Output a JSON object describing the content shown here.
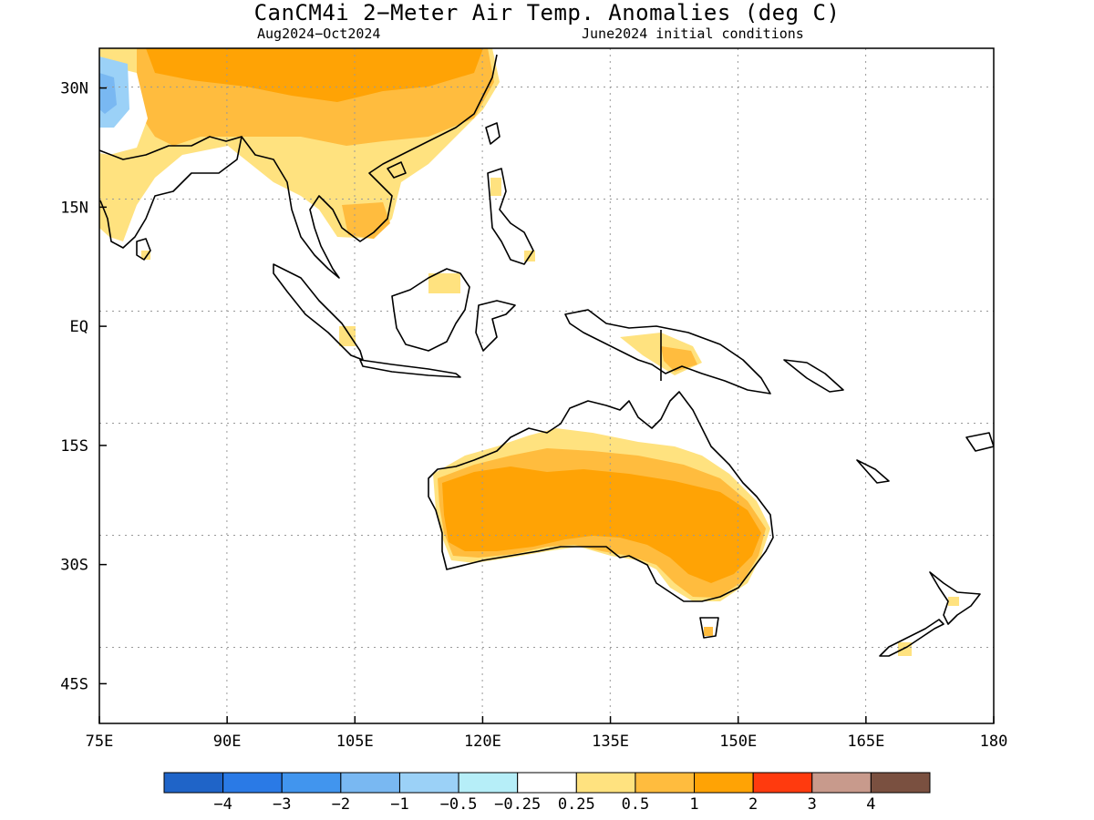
{
  "title": "CanCM4i 2−Meter Air Temp. Anomalies (deg C)",
  "subtitle_left": "Aug2024−Oct2024",
  "subtitle_right": "June2024 initial conditions",
  "map": {
    "lon_range": [
      75,
      180
    ],
    "lat_range": [
      -50,
      35
    ],
    "x_ticks": [
      "75E",
      "90E",
      "105E",
      "120E",
      "135E",
      "150E",
      "165E",
      "180"
    ],
    "x_tick_values": [
      75,
      90,
      105,
      120,
      135,
      150,
      165,
      180
    ],
    "y_ticks": [
      "30N",
      "15N",
      "EQ",
      "15S",
      "30S",
      "45S"
    ],
    "y_tick_values": [
      30,
      15,
      0,
      -15,
      -30,
      -45
    ],
    "grid": "dotted"
  },
  "colorbar": {
    "labels": [
      "−4",
      "−3",
      "−2",
      "−1",
      "−0.5",
      "−0.25",
      "0.25",
      "0.5",
      "1",
      "2",
      "3",
      "4"
    ],
    "colors": [
      "#1f64c8",
      "#2a7ae6",
      "#4195ee",
      "#79b8f2",
      "#9bd1f7",
      "#b6eef8",
      "#ffffff",
      "#ffe27f",
      "#ffbc3e",
      "#ffa305",
      "#ff3a0e",
      "#c89a8c",
      "#7a5040"
    ]
  }
}
